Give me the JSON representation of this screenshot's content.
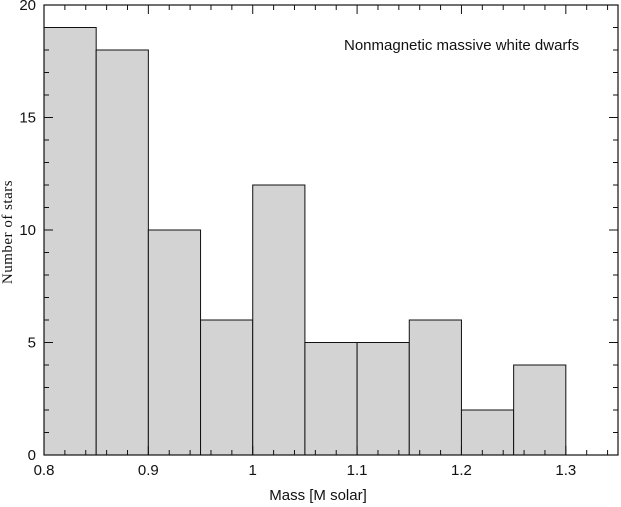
{
  "chart_data": {
    "type": "bar",
    "subtype": "histogram",
    "bin_edges": [
      0.8,
      0.85,
      0.9,
      0.95,
      1.0,
      1.05,
      1.1,
      1.15,
      1.2,
      1.25,
      1.3
    ],
    "values": [
      19,
      18,
      10,
      6,
      12,
      5,
      5,
      6,
      2,
      4
    ],
    "xlabel": "Mass [M solar]",
    "ylabel": "Number of stars",
    "annotation": "Nonmagnetic massive white dwarfs",
    "xlim": [
      0.8,
      1.35
    ],
    "ylim": [
      0,
      20
    ],
    "xticks": [
      0.8,
      0.9,
      1.0,
      1.1,
      1.2,
      1.3
    ],
    "xtick_labels": [
      "0.8",
      "0.9",
      "1",
      "1.1",
      "1.2",
      "1.3"
    ],
    "yticks": [
      0,
      5,
      10,
      15,
      20
    ],
    "ytick_labels": [
      "0",
      "5",
      "10",
      "15",
      "20"
    ],
    "bar_color": "#d3d3d3",
    "edge_color": "#111111",
    "grid": false,
    "legend": "none"
  }
}
